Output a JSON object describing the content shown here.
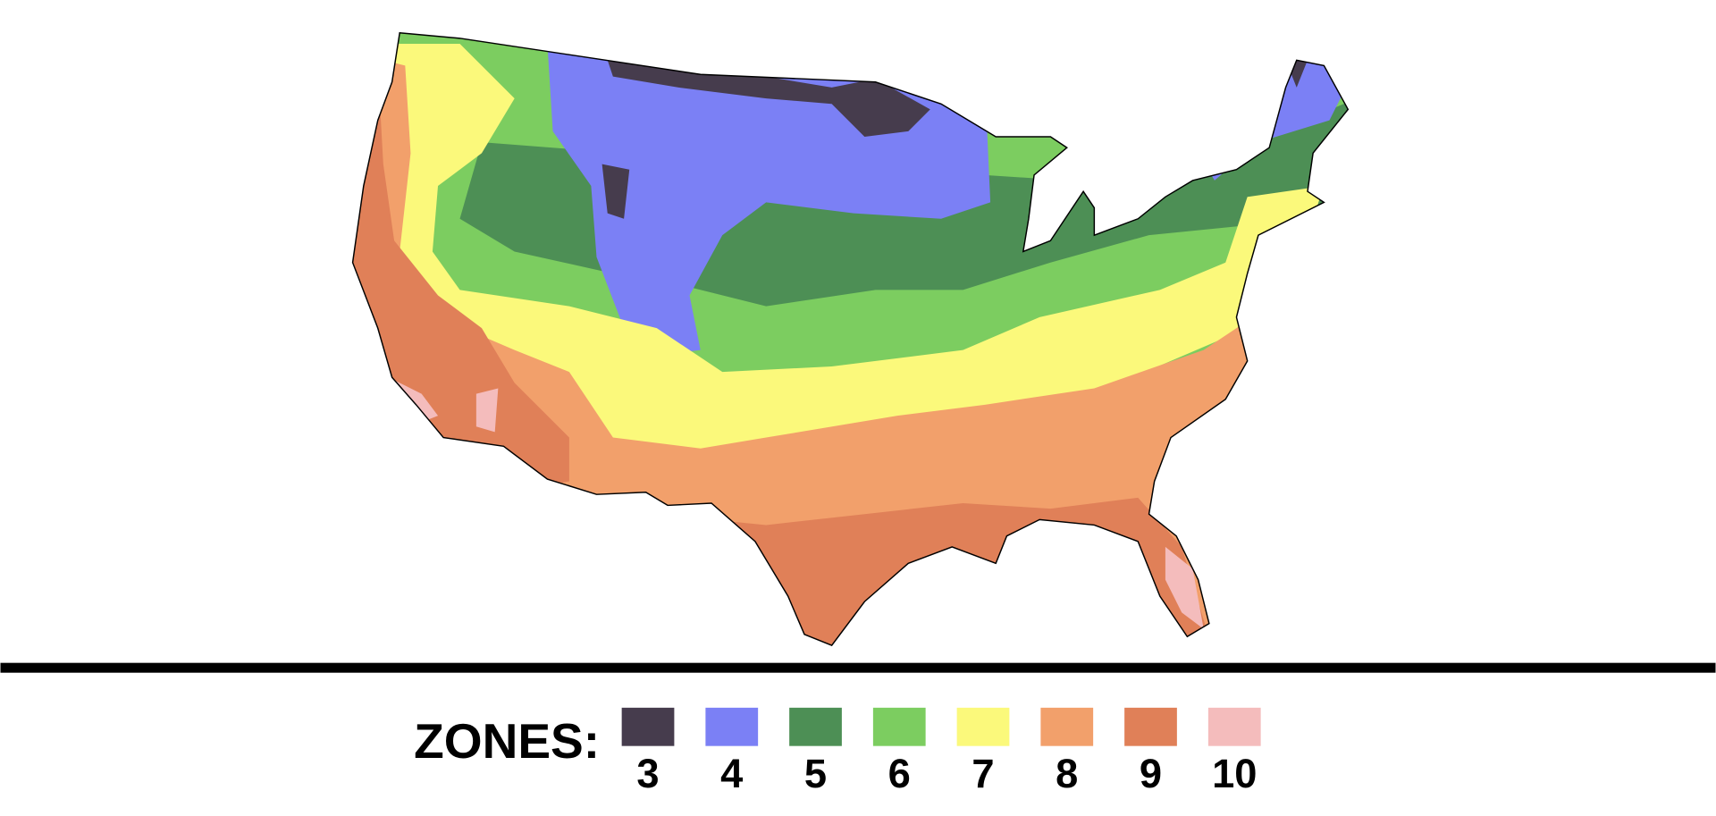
{
  "legend": {
    "title": "ZONES:",
    "items": [
      {
        "label": "3",
        "color": "#463c4d"
      },
      {
        "label": "4",
        "color": "#7b80f5"
      },
      {
        "label": "5",
        "color": "#4d8f55"
      },
      {
        "label": "6",
        "color": "#7ccd60"
      },
      {
        "label": "7",
        "color": "#fbf97b"
      },
      {
        "label": "8",
        "color": "#f2a06b"
      },
      {
        "label": "9",
        "color": "#e08058"
      },
      {
        "label": "10",
        "color": "#f4bcbc"
      }
    ]
  }
}
